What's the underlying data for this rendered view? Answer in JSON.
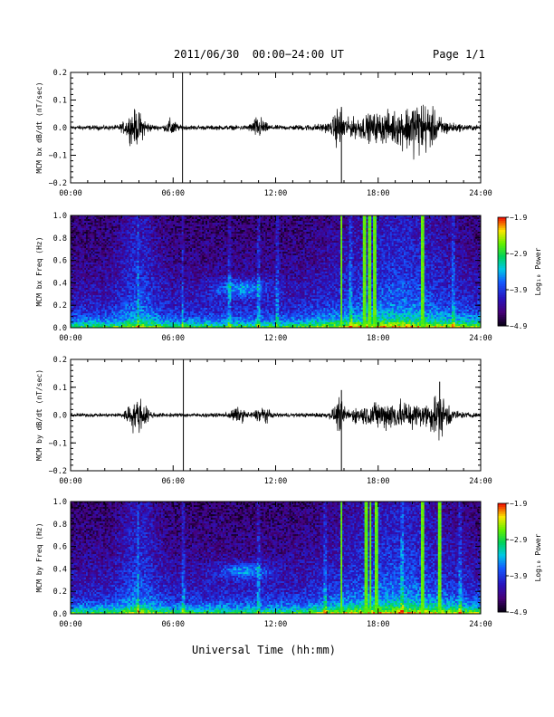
{
  "header": {
    "title": "2011/06/30  00:00−24:00 UT",
    "page": "Page 1/1"
  },
  "xlabel": "Universal Time (hh:mm)",
  "chart_data": [
    {
      "type": "line",
      "ylabel": "MCM bx dB/dt (nT/sec)",
      "ylim": [
        -0.2,
        0.2
      ],
      "yticks": [
        "0.2",
        "0.1",
        "0.0",
        "−0.1",
        "−0.2"
      ],
      "xlim": [
        0,
        24
      ],
      "xticks": [
        "00:00",
        "06:00",
        "12:00",
        "18:00",
        "24:00"
      ],
      "baseline_noise": 0.006,
      "activity": [
        {
          "t": 3.8,
          "w": 0.6,
          "amp": 0.04
        },
        {
          "t": 5.9,
          "w": 0.3,
          "amp": 0.02
        },
        {
          "t": 11.0,
          "w": 0.4,
          "amp": 0.025
        },
        {
          "t": 15.7,
          "w": 0.3,
          "amp": 0.04
        },
        {
          "t": 18.6,
          "w": 2.8,
          "amp": 0.035
        },
        {
          "t": 20.5,
          "w": 1.0,
          "amp": 0.045
        }
      ],
      "spikes": [
        {
          "t": 6.55,
          "y": 0.2
        },
        {
          "t": 6.55,
          "y": -0.2
        },
        {
          "t": 15.85,
          "y": 0.075
        },
        {
          "t": 15.85,
          "y": -0.2
        }
      ]
    },
    {
      "type": "heatmap",
      "ylabel": "MCM bx Freq (Hz)",
      "ylim": [
        0,
        1
      ],
      "yticks": [
        "1.0",
        "0.8",
        "0.6",
        "0.4",
        "0.2",
        "0.0"
      ],
      "xlim": [
        0,
        24
      ],
      "xticks": [
        "00:00",
        "06:00",
        "12:00",
        "18:00",
        "24:00"
      ],
      "colorbar": {
        "label": "Log₁₀ Power",
        "min": -4.9,
        "max": -1.9,
        "ticks": [
          "−1.9",
          "−2.9",
          "−3.9",
          "−4.9"
        ]
      },
      "bright_lines": [
        15.85,
        17.2,
        17.5,
        17.8,
        20.6
      ],
      "faint_lines": [
        3.95,
        6.55,
        9.3,
        11.0,
        12.1,
        16.4,
        22.4
      ],
      "blob": {
        "t": 10.0,
        "f": 0.35,
        "dt": 1.6,
        "df": 0.08
      }
    },
    {
      "type": "line",
      "ylabel": "MCM by dB/dt (nT/sec)",
      "ylim": [
        -0.2,
        0.2
      ],
      "yticks": [
        "0.2",
        "0.1",
        "0.0",
        "−0.1",
        "−0.2"
      ],
      "xlim": [
        0,
        24
      ],
      "xticks": [
        "00:00",
        "06:00",
        "12:00",
        "18:00",
        "24:00"
      ],
      "baseline_noise": 0.005,
      "activity": [
        {
          "t": 3.9,
          "w": 0.6,
          "amp": 0.04
        },
        {
          "t": 9.8,
          "w": 0.5,
          "amp": 0.015
        },
        {
          "t": 11.2,
          "w": 0.4,
          "amp": 0.02
        },
        {
          "t": 15.7,
          "w": 0.3,
          "amp": 0.03
        },
        {
          "t": 19.0,
          "w": 2.5,
          "amp": 0.035
        },
        {
          "t": 21.6,
          "w": 0.6,
          "amp": 0.04
        }
      ],
      "spikes": [
        {
          "t": 6.6,
          "y": 0.2
        },
        {
          "t": 6.6,
          "y": -0.2
        },
        {
          "t": 15.85,
          "y": 0.09
        },
        {
          "t": 15.85,
          "y": -0.2
        },
        {
          "t": 21.6,
          "y": 0.12
        }
      ]
    },
    {
      "type": "heatmap",
      "ylabel": "MCM by Freq (Hz)",
      "ylim": [
        0,
        1
      ],
      "yticks": [
        "1.0",
        "0.8",
        "0.6",
        "0.4",
        "0.2",
        "0.0"
      ],
      "xlim": [
        0,
        24
      ],
      "xticks": [
        "00:00",
        "06:00",
        "12:00",
        "18:00",
        "24:00"
      ],
      "colorbar": {
        "label": "Log₁₀ Power",
        "min": -4.9,
        "max": -1.9,
        "ticks": [
          "−1.9",
          "−2.9",
          "−3.9",
          "−4.9"
        ]
      },
      "bright_lines": [
        15.85,
        17.3,
        17.55,
        17.9,
        20.6,
        21.6
      ],
      "faint_lines": [
        3.95,
        6.6,
        11.0,
        14.9,
        19.4,
        22.8
      ],
      "blob": {
        "t": 10.2,
        "f": 0.38,
        "dt": 1.5,
        "df": 0.07
      }
    }
  ]
}
